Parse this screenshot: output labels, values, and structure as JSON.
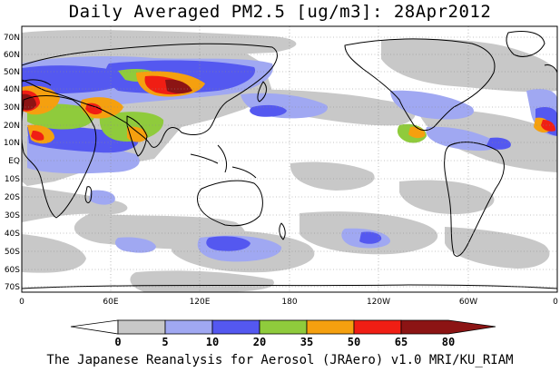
{
  "title": "Daily Averaged PM2.5 [ug/m3]: 28Apr2012",
  "lat_labels": [
    "70N",
    "60N",
    "50N",
    "40N",
    "30N",
    "20N",
    "10N",
    "EQ",
    "10S",
    "20S",
    "30S",
    "40S",
    "50S",
    "60S",
    "70S"
  ],
  "lon_labels": [
    "0",
    "60E",
    "120E",
    "180",
    "120W",
    "60W",
    "0"
  ],
  "colorbar": {
    "bins": [
      {
        "color": "#ffffff"
      },
      {
        "color": "#c8c8c8"
      },
      {
        "color": "#a0a8f2"
      },
      {
        "color": "#5458f0"
      },
      {
        "color": "#8fcb3c"
      },
      {
        "color": "#f5a00f"
      },
      {
        "color": "#f01e14"
      },
      {
        "color": "#8c1414"
      }
    ],
    "tick_labels": [
      "0",
      "5",
      "10",
      "20",
      "35",
      "50",
      "65",
      "80"
    ]
  },
  "credit": "The Japanese Reanalysis for Aerosol (JRAero) v1.0 MRI/KU_RIAM"
}
